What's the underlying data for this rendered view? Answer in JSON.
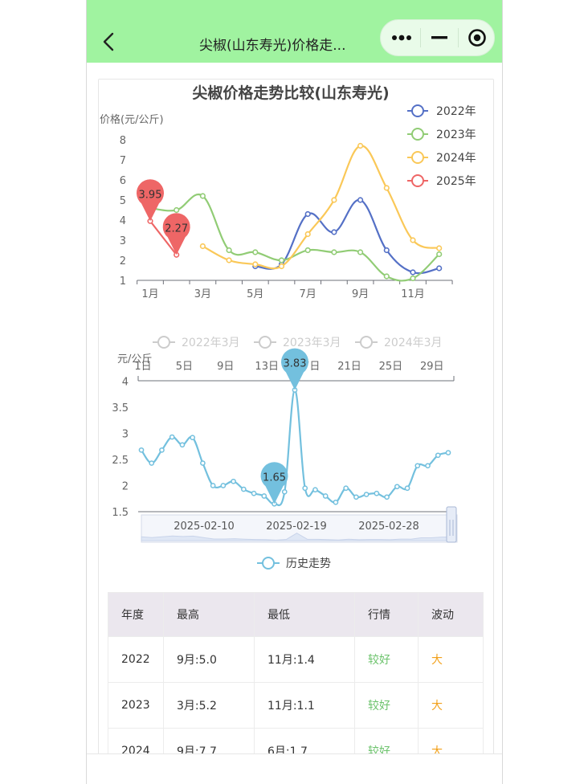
{
  "header": {
    "title": "尖椒(山东寿光)价格走..."
  },
  "capsule": {
    "more_icon": "more-dots-icon",
    "minimize_icon": "minus-icon",
    "close_icon": "target-icon"
  },
  "colors": {
    "topbar": "#a0f3a0",
    "s2022": "#5470c6",
    "s2023": "#91cc75",
    "s2024": "#fac858",
    "s2025": "#ee6666",
    "history": "#73c0de"
  },
  "chart_data": [
    {
      "type": "line",
      "title": "尖椒价格走势比较(山东寿光)",
      "ylabel": "价格(元/公斤)",
      "xlabel": "",
      "ylim": [
        1,
        8
      ],
      "x_tick_labels": [
        "1月",
        "3月",
        "5月",
        "7月",
        "9月",
        "11月"
      ],
      "y_tick_labels": [
        "1",
        "2",
        "3",
        "4",
        "5",
        "6",
        "7",
        "8"
      ],
      "legend_position": "top-right",
      "series": [
        {
          "name": "2022年",
          "x": [
            5,
            6,
            7,
            8,
            9,
            10,
            11,
            12
          ],
          "values": [
            1.7,
            1.8,
            4.3,
            3.4,
            5.0,
            2.5,
            1.4,
            1.6
          ]
        },
        {
          "name": "2023年",
          "x": [
            1,
            2,
            3,
            4,
            5,
            6,
            7,
            8,
            9,
            10,
            11,
            12
          ],
          "values": [
            4.6,
            4.5,
            5.2,
            2.5,
            2.4,
            2.0,
            2.5,
            2.4,
            2.4,
            1.2,
            1.1,
            2.3
          ]
        },
        {
          "name": "2024年",
          "x": [
            3,
            4,
            5,
            6,
            7,
            8,
            9,
            10,
            11,
            12
          ],
          "values": [
            2.7,
            2.0,
            1.8,
            1.7,
            3.3,
            5.0,
            7.7,
            5.6,
            3.0,
            2.6
          ]
        },
        {
          "name": "2025年",
          "x": [
            1,
            2
          ],
          "values": [
            3.95,
            2.27
          ]
        }
      ],
      "annotations": [
        {
          "label": "3.95",
          "x": 1,
          "y": 3.95
        },
        {
          "label": "2.27",
          "x": 2,
          "y": 2.27
        }
      ]
    },
    {
      "type": "line",
      "legend_top": [
        "2022年3月",
        "2023年3月",
        "2024年3月"
      ],
      "ylabel": "元/公斤",
      "ylim": [
        1.5,
        4
      ],
      "y_tick_labels": [
        "1.5",
        "2",
        "2.5",
        "3",
        "3.5",
        "4"
      ],
      "x_top_tick_labels": [
        "1日",
        "5日",
        "9日",
        "13日",
        "17日",
        "21日",
        "25日",
        "29日"
      ],
      "zoom_labels": [
        "2025-02-10",
        "2025-02-19",
        "2025-02-28"
      ],
      "series": [
        {
          "name": "历史走势",
          "values": [
            2.68,
            2.43,
            2.68,
            2.93,
            2.78,
            2.92,
            2.43,
            2.0,
            2.0,
            2.08,
            1.93,
            1.85,
            1.8,
            1.65,
            1.88,
            3.83,
            1.95,
            1.92,
            1.8,
            1.68,
            1.95,
            1.78,
            1.83,
            1.85,
            1.78,
            1.98,
            1.95,
            2.38,
            2.38,
            2.58,
            2.63
          ]
        }
      ],
      "annotations": [
        {
          "label": "3.83",
          "index": 15,
          "y": 3.83
        },
        {
          "label": "1.65",
          "index": 13,
          "y": 1.65
        }
      ]
    }
  ],
  "table": {
    "headers": [
      "年度",
      "最高",
      "最低",
      "行情",
      "波动"
    ],
    "rows": [
      {
        "year": "2022",
        "high": "9月:5.0",
        "low": "11月:1.4",
        "market": "较好",
        "volatility": "大"
      },
      {
        "year": "2023",
        "high": "3月:5.2",
        "low": "11月:1.1",
        "market": "较好",
        "volatility": "大"
      },
      {
        "year": "2024",
        "high": "9月:7.7",
        "low": "6月:1.7",
        "market": "较好",
        "volatility": "大"
      }
    ]
  }
}
